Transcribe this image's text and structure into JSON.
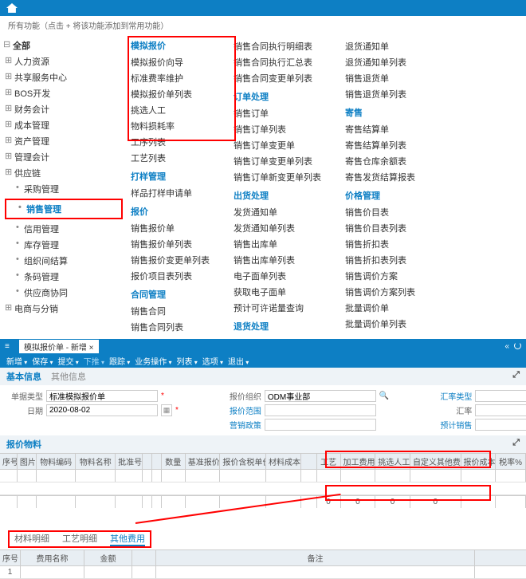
{
  "hint": "所有功能（点击 + 将该功能添加到常用功能）",
  "tree": {
    "root": "全部",
    "lvl1": [
      "人力资源",
      "共享服务中心",
      "BOS开发",
      "财务会计",
      "成本管理",
      "资产管理",
      "管理会计",
      "供应链"
    ],
    "supplychain": [
      "采购管理",
      "销售管理",
      "信用管理",
      "库存管理",
      "组织间结算",
      "条码管理",
      "供应商协同"
    ],
    "last": "电商与分销"
  },
  "cols": [
    {
      "groups": [
        {
          "h": "模拟报价",
          "items": [
            "模拟报价向导",
            "标准费率维护",
            "模拟报价单列表",
            "挑选人工",
            "物料损耗率",
            "工序列表",
            "工艺列表"
          ]
        },
        {
          "h": "打样管理",
          "items": [
            "样品打样申请单"
          ]
        },
        {
          "h": "报价",
          "items": [
            "销售报价单",
            "销售报价单列表",
            "销售报价变更单列表",
            "报价项目表列表"
          ]
        },
        {
          "h": "合同管理",
          "items": [
            "销售合同",
            "销售合同列表"
          ]
        }
      ]
    },
    {
      "groups": [
        {
          "h": "",
          "items": [
            "销售合同执行明细表",
            "销售合同执行汇总表",
            "销售合同变更单列表"
          ]
        },
        {
          "h": "订单处理",
          "items": [
            "销售订单",
            "销售订单列表",
            "销售订单变更单",
            "销售订单变更单列表",
            "销售订单新变更单列表"
          ]
        },
        {
          "h": "出货处理",
          "items": [
            "发货通知单",
            "发货通知单列表",
            "销售出库单",
            "销售出库单列表",
            "电子面单列表",
            "获取电子面单",
            "预计可许诺量查询"
          ]
        },
        {
          "h": "退货处理",
          "items": []
        }
      ]
    },
    {
      "groups": [
        {
          "h": "",
          "items": [
            "退货通知单",
            "退货通知单列表",
            "销售退货单",
            "销售退货单列表"
          ]
        },
        {
          "h": "寄售",
          "items": [
            "寄售结算单",
            "寄售结算单列表",
            "寄售仓库余额表",
            "寄售发货结算报表"
          ]
        },
        {
          "h": "价格管理",
          "items": [
            "销售价目表",
            "销售价目表列表",
            "销售折扣表",
            "销售折扣表列表",
            "销售调价方案",
            "销售调价方案列表",
            "批量调价单",
            "批量调价单列表"
          ]
        }
      ]
    }
  ],
  "tab": "模拟报价单 - 新增",
  "toolbar": [
    "新增",
    "保存",
    "提交",
    "下推",
    "跟踪",
    "业务操作",
    "列表",
    "选项",
    "退出"
  ],
  "sect1": {
    "t1": "基本信息",
    "t2": "其他信息"
  },
  "form": {
    "l1": "单据类型",
    "v1": "标准模拟报价单",
    "l2": "日期",
    "v2": "2020-08-02",
    "l3": "报价组织",
    "v3": "ODM事业部",
    "l4": "报价范围",
    "l5": "营销政策",
    "l6": "汇率类型",
    "l7": "汇率",
    "l8": "预计销售"
  },
  "sect2": "报价物料",
  "grid": {
    "cols": [
      "序号",
      "图片",
      "物料编码",
      "物料名称",
      "批准号",
      "",
      "",
      "数量",
      "基准报价",
      "报价含税单价",
      "材料成本",
      "",
      "工艺",
      "加工费用",
      "挑选人工",
      "自定义其他费用",
      "报价成本",
      "税率%"
    ]
  },
  "sum": [
    "0",
    "0",
    "0",
    "0"
  ],
  "tabs2": {
    "a": "材料明细",
    "b": "工艺明细",
    "c": "其他费用"
  },
  "grid2": {
    "cols": [
      "序号",
      "费用名称",
      "金额",
      "",
      "备注"
    ]
  },
  "row2": "1"
}
